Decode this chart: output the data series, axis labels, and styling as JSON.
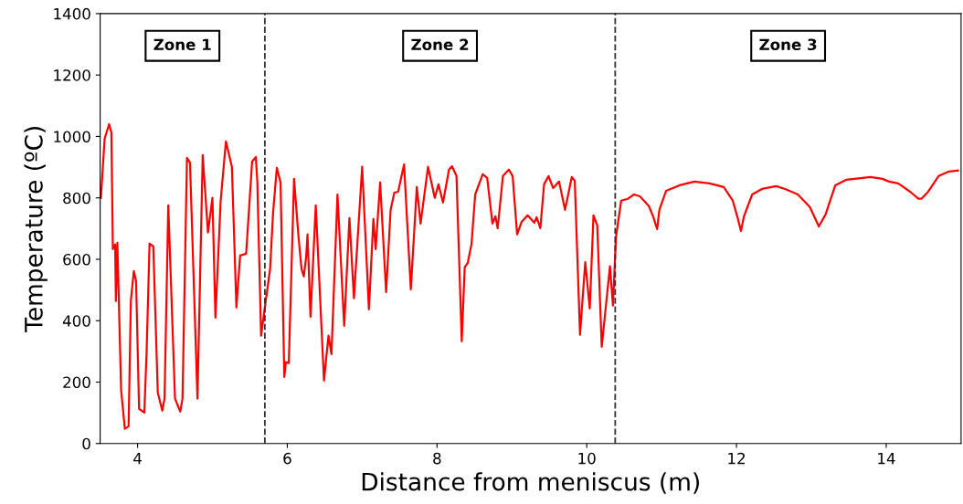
{
  "chart_data": {
    "type": "line",
    "xlabel": "Distance from meniscus (m)",
    "ylabel": "Temperature (ºC)",
    "xlim": [
      3.5,
      15
    ],
    "ylim": [
      0,
      1400
    ],
    "xticks": [
      4,
      6,
      8,
      10,
      12,
      14
    ],
    "yticks": [
      0,
      200,
      400,
      600,
      800,
      1000,
      1200,
      1400
    ],
    "grid": false,
    "legend": false,
    "marker": "none",
    "line_style": "solid",
    "ref_lines": [
      {
        "axis": "x",
        "value": 5.7,
        "color": "#333333",
        "line_style": "dashed"
      },
      {
        "axis": "x",
        "value": 10.38,
        "color": "#333333",
        "line_style": "dashed"
      }
    ],
    "annotations": [
      "Zone 1",
      "Zone 2",
      "Zone 3"
    ],
    "series": [
      {
        "color": "#ff0000",
        "x": [
          3.51,
          3.56,
          3.62,
          3.65,
          3.67,
          3.7,
          3.71,
          3.73,
          3.78,
          3.83,
          3.88,
          3.91,
          3.95,
          3.98,
          4.02,
          4.09,
          4.12,
          4.16,
          4.21,
          4.27,
          4.33,
          4.36,
          4.41,
          4.5,
          4.57,
          4.6,
          4.66,
          4.7,
          4.8,
          4.87,
          4.94,
          5.0,
          5.04,
          5.11,
          5.18,
          5.26,
          5.32,
          5.37,
          5.45,
          5.53,
          5.58,
          5.6,
          5.65,
          5.7,
          5.77,
          5.81,
          5.86,
          5.91,
          5.96,
          5.98,
          6.02,
          6.09,
          6.15,
          6.19,
          6.22,
          6.25,
          6.27,
          6.31,
          6.38,
          6.49,
          6.55,
          6.59,
          6.67,
          6.76,
          6.83,
          6.89,
          7.0,
          7.09,
          7.15,
          7.18,
          7.24,
          7.32,
          7.38,
          7.43,
          7.48,
          7.56,
          7.65,
          7.73,
          7.78,
          7.88,
          7.97,
          8.02,
          8.08,
          8.16,
          8.2,
          8.26,
          8.33,
          8.37,
          8.41,
          8.46,
          8.51,
          8.61,
          8.67,
          8.74,
          8.78,
          8.81,
          8.88,
          8.96,
          9.01,
          9.07,
          9.13,
          9.21,
          9.3,
          9.33,
          9.38,
          9.43,
          9.49,
          9.55,
          9.63,
          9.71,
          9.8,
          9.84,
          9.91,
          9.98,
          10.04,
          10.09,
          10.14,
          10.2,
          10.31,
          10.35,
          10.39,
          10.46,
          10.55,
          10.63,
          10.71,
          10.83,
          10.89,
          10.94,
          10.97,
          11.06,
          11.24,
          11.44,
          11.64,
          11.83,
          11.95,
          12.01,
          12.06,
          12.1,
          12.21,
          12.34,
          12.53,
          12.65,
          12.82,
          12.98,
          13.1,
          13.19,
          13.32,
          13.47,
          13.79,
          13.95,
          14.04,
          14.16,
          14.32,
          14.43,
          14.47,
          14.56,
          14.7,
          14.84,
          14.96
        ],
        "values": [
          800,
          993,
          1040,
          1013,
          633,
          648,
          464,
          654,
          175,
          48,
          56,
          464,
          562,
          529,
          113,
          101,
          294,
          651,
          642,
          166,
          107,
          146,
          776,
          146,
          104,
          146,
          930,
          915,
          146,
          939,
          687,
          800,
          410,
          791,
          984,
          901,
          443,
          612,
          618,
          918,
          933,
          850,
          351,
          443,
          568,
          752,
          898,
          850,
          217,
          265,
          262,
          862,
          672,
          568,
          544,
          603,
          681,
          413,
          776,
          205,
          351,
          291,
          811,
          383,
          734,
          473,
          901,
          437,
          731,
          633,
          850,
          493,
          761,
          817,
          820,
          909,
          502,
          835,
          716,
          901,
          800,
          844,
          785,
          892,
          903,
          871,
          333,
          574,
          588,
          648,
          811,
          877,
          865,
          716,
          740,
          701,
          871,
          892,
          871,
          681,
          722,
          743,
          719,
          737,
          701,
          844,
          871,
          832,
          853,
          761,
          868,
          856,
          354,
          591,
          440,
          743,
          710,
          315,
          577,
          449,
          672,
          791,
          797,
          811,
          805,
          773,
          737,
          698,
          761,
          823,
          841,
          853,
          847,
          835,
          791,
          740,
          692,
          740,
          811,
          829,
          838,
          829,
          811,
          770,
          707,
          746,
          841,
          859,
          868,
          862,
          853,
          847,
          820,
          797,
          797,
          820,
          871,
          886,
          889
        ]
      }
    ]
  }
}
